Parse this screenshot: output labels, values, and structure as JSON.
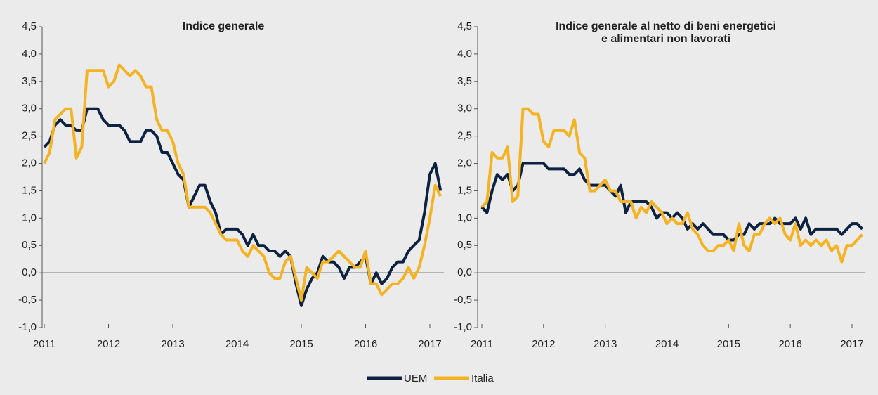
{
  "chart_data": [
    {
      "type": "line",
      "title": "Indice generale",
      "categories": [
        "2011",
        null,
        null,
        null,
        null,
        null,
        null,
        null,
        null,
        null,
        null,
        null,
        "2012",
        null,
        null,
        null,
        null,
        null,
        null,
        null,
        null,
        null,
        null,
        null,
        "2013",
        null,
        null,
        null,
        null,
        null,
        null,
        null,
        null,
        null,
        null,
        null,
        "2014",
        null,
        null,
        null,
        null,
        null,
        null,
        null,
        null,
        null,
        null,
        null,
        "2015",
        null,
        null,
        null,
        null,
        null,
        null,
        null,
        null,
        null,
        null,
        null,
        "2016",
        null,
        null,
        null,
        null,
        null,
        null,
        null,
        null,
        null,
        null,
        null,
        "2017",
        null,
        null
      ],
      "series": [
        {
          "name": "UEM",
          "color": "#0d2240",
          "values": [
            2.3,
            2.4,
            2.7,
            2.8,
            2.7,
            2.7,
            2.6,
            2.6,
            3.0,
            3.0,
            3.0,
            2.8,
            2.7,
            2.7,
            2.7,
            2.6,
            2.4,
            2.4,
            2.4,
            2.6,
            2.6,
            2.5,
            2.2,
            2.2,
            2.0,
            1.8,
            1.7,
            1.2,
            1.4,
            1.6,
            1.6,
            1.3,
            1.1,
            0.7,
            0.8,
            0.8,
            0.8,
            0.7,
            0.5,
            0.7,
            0.5,
            0.5,
            0.4,
            0.4,
            0.3,
            0.4,
            0.3,
            -0.2,
            -0.6,
            -0.3,
            -0.1,
            0.0,
            0.3,
            0.2,
            0.2,
            0.1,
            -0.1,
            0.1,
            0.1,
            0.2,
            0.3,
            -0.2,
            0.0,
            -0.2,
            -0.1,
            0.1,
            0.2,
            0.2,
            0.4,
            0.5,
            0.6,
            1.1,
            1.8,
            2.0,
            1.5
          ]
        },
        {
          "name": "Italia",
          "color": "#f5b323",
          "values": [
            2.0,
            2.2,
            2.8,
            2.9,
            3.0,
            3.0,
            2.1,
            2.3,
            3.7,
            3.7,
            3.7,
            3.7,
            3.4,
            3.5,
            3.8,
            3.7,
            3.6,
            3.7,
            3.6,
            3.4,
            3.4,
            2.8,
            2.6,
            2.6,
            2.4,
            2.0,
            1.8,
            1.2,
            1.2,
            1.2,
            1.2,
            1.1,
            0.9,
            0.7,
            0.6,
            0.6,
            0.6,
            0.4,
            0.3,
            0.5,
            0.4,
            0.3,
            0.0,
            -0.1,
            -0.1,
            0.2,
            0.3,
            -0.1,
            -0.5,
            0.1,
            0.0,
            -0.1,
            0.2,
            0.2,
            0.3,
            0.4,
            0.3,
            0.2,
            0.1,
            0.1,
            0.4,
            -0.2,
            -0.2,
            -0.4,
            -0.3,
            -0.2,
            -0.2,
            -0.1,
            0.1,
            -0.1,
            0.1,
            0.5,
            1.0,
            1.6,
            1.4
          ]
        }
      ],
      "ylim": [
        -1.0,
        4.5
      ],
      "yticks": [
        {
          "value": -1.0,
          "label": "-1,0"
        },
        {
          "value": -0.5,
          "label": "-0,5"
        },
        {
          "value": 0,
          "label": "0,0"
        },
        {
          "value": 0.5,
          "label": "0,5"
        },
        {
          "value": 1.0,
          "label": "1,0"
        },
        {
          "value": 1.5,
          "label": "1,5"
        },
        {
          "value": 2.0,
          "label": "2,0"
        },
        {
          "value": 2.5,
          "label": "2,5"
        },
        {
          "value": 3.0,
          "label": "3,0"
        },
        {
          "value": 3.5,
          "label": "3,5"
        },
        {
          "value": 4.0,
          "label": "4,0"
        },
        {
          "value": 4.5,
          "label": "4,5"
        }
      ],
      "legend": "bottom"
    },
    {
      "type": "line",
      "title": [
        "Indice generale al netto di beni energetici",
        "e alimentari non lavorati"
      ],
      "categories": [
        "2011",
        null,
        null,
        null,
        null,
        null,
        null,
        null,
        null,
        null,
        null,
        null,
        "2012",
        null,
        null,
        null,
        null,
        null,
        null,
        null,
        null,
        null,
        null,
        null,
        "2013",
        null,
        null,
        null,
        null,
        null,
        null,
        null,
        null,
        null,
        null,
        null,
        "2014",
        null,
        null,
        null,
        null,
        null,
        null,
        null,
        null,
        null,
        null,
        null,
        "2015",
        null,
        null,
        null,
        null,
        null,
        null,
        null,
        null,
        null,
        null,
        null,
        "2016",
        null,
        null,
        null,
        null,
        null,
        null,
        null,
        null,
        null,
        null,
        null,
        "2017",
        null,
        null
      ],
      "series": [
        {
          "name": "UEM",
          "color": "#0d2240",
          "values": [
            1.2,
            1.1,
            1.5,
            1.8,
            1.7,
            1.8,
            1.5,
            1.6,
            2.0,
            2.0,
            2.0,
            2.0,
            2.0,
            1.9,
            1.9,
            1.9,
            1.9,
            1.8,
            1.8,
            1.9,
            1.7,
            1.6,
            1.6,
            1.6,
            1.6,
            1.5,
            1.4,
            1.6,
            1.1,
            1.3,
            1.3,
            1.3,
            1.3,
            1.2,
            1.0,
            1.1,
            1.1,
            1.0,
            1.1,
            1.0,
            0.8,
            0.9,
            0.8,
            0.9,
            0.8,
            0.7,
            0.7,
            0.7,
            0.6,
            0.6,
            0.7,
            0.7,
            0.9,
            0.8,
            0.9,
            0.9,
            0.9,
            1.0,
            0.9,
            0.9,
            0.9,
            1.0,
            0.8,
            1.0,
            0.7,
            0.8,
            0.8,
            0.8,
            0.8,
            0.8,
            0.7,
            0.8,
            0.9,
            0.9,
            0.8
          ]
        },
        {
          "name": "Italia",
          "color": "#f5b323",
          "values": [
            1.2,
            1.3,
            2.2,
            2.1,
            2.1,
            2.3,
            1.3,
            1.4,
            3.0,
            3.0,
            2.9,
            2.9,
            2.4,
            2.3,
            2.6,
            2.6,
            2.6,
            2.5,
            2.8,
            2.2,
            2.1,
            1.5,
            1.5,
            1.6,
            1.7,
            1.5,
            1.5,
            1.3,
            1.3,
            1.3,
            1.0,
            1.2,
            1.1,
            1.3,
            1.2,
            1.1,
            0.9,
            1.0,
            0.9,
            0.9,
            1.1,
            0.8,
            0.7,
            0.5,
            0.4,
            0.4,
            0.5,
            0.5,
            0.6,
            0.4,
            0.9,
            0.5,
            0.4,
            0.7,
            0.7,
            0.9,
            1.0,
            0.9,
            1.0,
            0.7,
            0.6,
            0.9,
            0.5,
            0.6,
            0.5,
            0.6,
            0.5,
            0.6,
            0.4,
            0.5,
            0.2,
            0.5,
            0.5,
            0.6,
            0.7
          ]
        }
      ],
      "ylim": [
        -1.0,
        4.5
      ],
      "yticks": [
        {
          "value": -1.0,
          "label": "-1,0"
        },
        {
          "value": -0.5,
          "label": "-0,5"
        },
        {
          "value": 0,
          "label": "0,0"
        },
        {
          "value": 0.5,
          "label": "0,5"
        },
        {
          "value": 1.0,
          "label": "1,0"
        },
        {
          "value": 1.5,
          "label": "1,5"
        },
        {
          "value": 2.0,
          "label": "2,0"
        },
        {
          "value": 2.5,
          "label": "2,5"
        },
        {
          "value": 3.0,
          "label": "3,0"
        },
        {
          "value": 3.5,
          "label": "3,5"
        },
        {
          "value": 4.0,
          "label": "4,0"
        },
        {
          "value": 4.5,
          "label": "4,5"
        }
      ],
      "legend": "bottom"
    }
  ]
}
